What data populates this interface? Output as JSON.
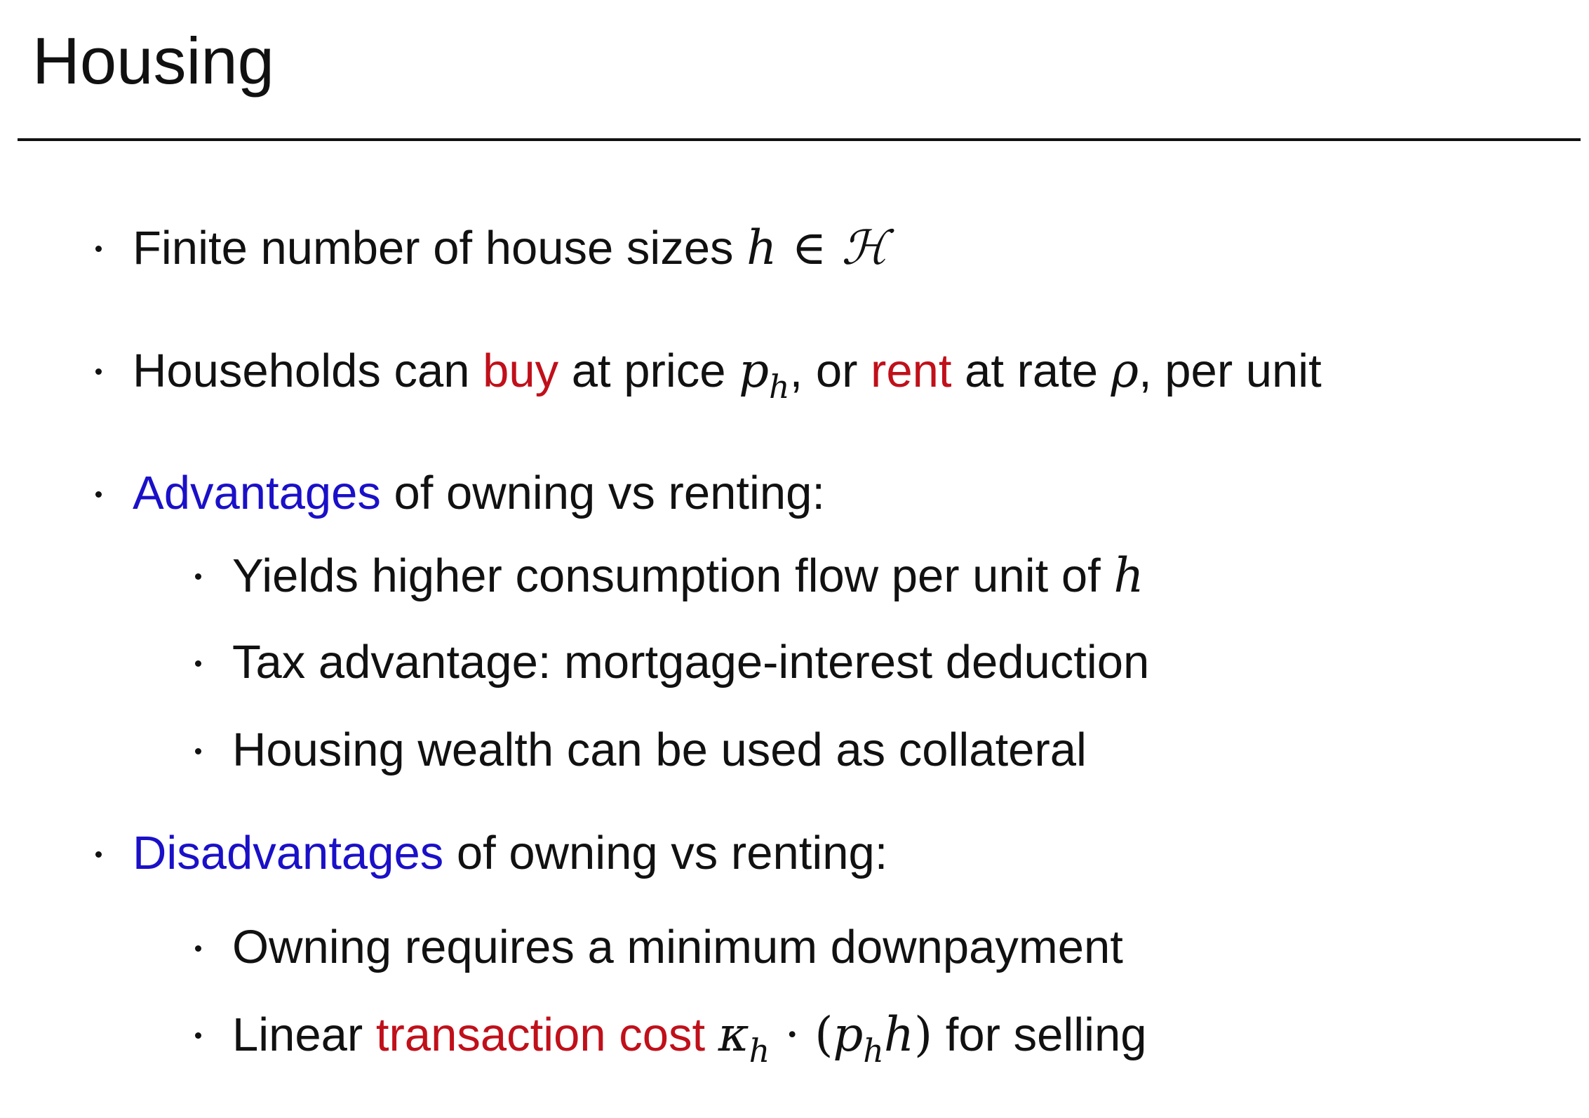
{
  "slide": {
    "title": "Housing"
  },
  "colors": {
    "emphasis_red": "#c0101a",
    "emphasis_blue": "#1a10c8",
    "text": "#111111"
  },
  "bullets": {
    "b1": {
      "text": "Finite number of house sizes ",
      "math_h": "h",
      "math_in": " ∈ ",
      "math_set": "ℋ"
    },
    "b2": {
      "t1": "Households can ",
      "buy": "buy",
      "t2": " at price ",
      "p": "p",
      "p_sub": "h",
      "t3": ", or ",
      "rent": "rent",
      "t4": " at rate ",
      "rho": "ρ",
      "t5": ", per unit"
    },
    "b3": {
      "label": "Advantages",
      "rest": " of owning vs renting:",
      "sub": [
        {
          "text": "Yields higher consumption flow per unit of ",
          "math": "h"
        },
        {
          "text": "Tax advantage: mortgage-interest deduction"
        },
        {
          "text": "Housing wealth can be used as collateral"
        }
      ]
    },
    "b4": {
      "label": "Disadvantages",
      "rest": " of owning vs renting:",
      "sub": [
        {
          "text": "Owning requires a minimum downpayment"
        },
        {
          "t1": "Linear ",
          "highlight": "transaction cost",
          "kappa": "κ",
          "kappa_sub": "h",
          "dot": " · (",
          "p": "p",
          "p_sub": "h",
          "h": "h",
          "close": ")",
          "t2": " for selling"
        }
      ]
    }
  }
}
